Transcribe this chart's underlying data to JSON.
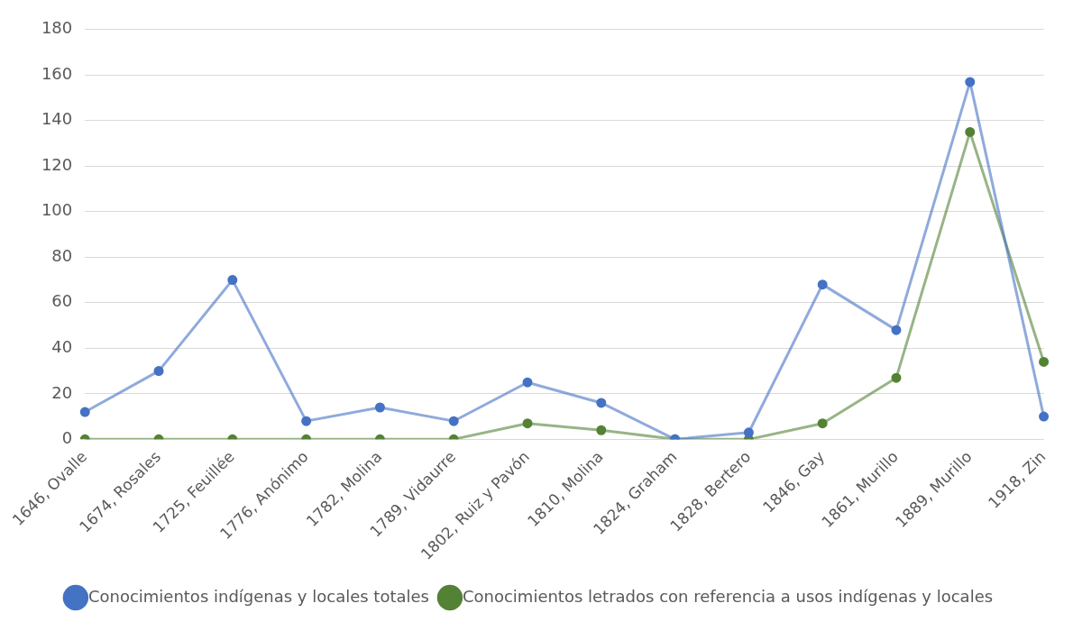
{
  "chart_data": {
    "type": "line",
    "categories": [
      "1646, Ovalle",
      "1674, Rosales",
      "1725, Feuillée",
      "1776, Anónimo",
      "1782, Molina",
      "1789, Vidaurre",
      "1802, Ruiz y Pavón",
      "1810, Molina",
      "1824, Graham",
      "1828, Bertero",
      "1846, Gay",
      "1861, Murillo",
      "1889, Murillo",
      "1918, Zin"
    ],
    "series": [
      {
        "name": "Conocimientos indígenas y locales totales",
        "color": "#4472c4",
        "values": [
          12,
          30,
          70,
          8,
          14,
          8,
          25,
          16,
          0,
          3,
          68,
          48,
          157,
          10
        ]
      },
      {
        "name": "Conocimientos letrados con referencia a usos indígenas y locales",
        "color": "#548235",
        "values": [
          0,
          0,
          0,
          0,
          0,
          0,
          7,
          4,
          0,
          0,
          7,
          27,
          135,
          34
        ]
      }
    ],
    "ylim": [
      0,
      180
    ],
    "yticks": [
      0,
      20,
      40,
      60,
      80,
      100,
      120,
      140,
      160,
      180
    ],
    "grid": "y",
    "legend": "bottom",
    "marker": "circle",
    "line_style": "solid"
  }
}
